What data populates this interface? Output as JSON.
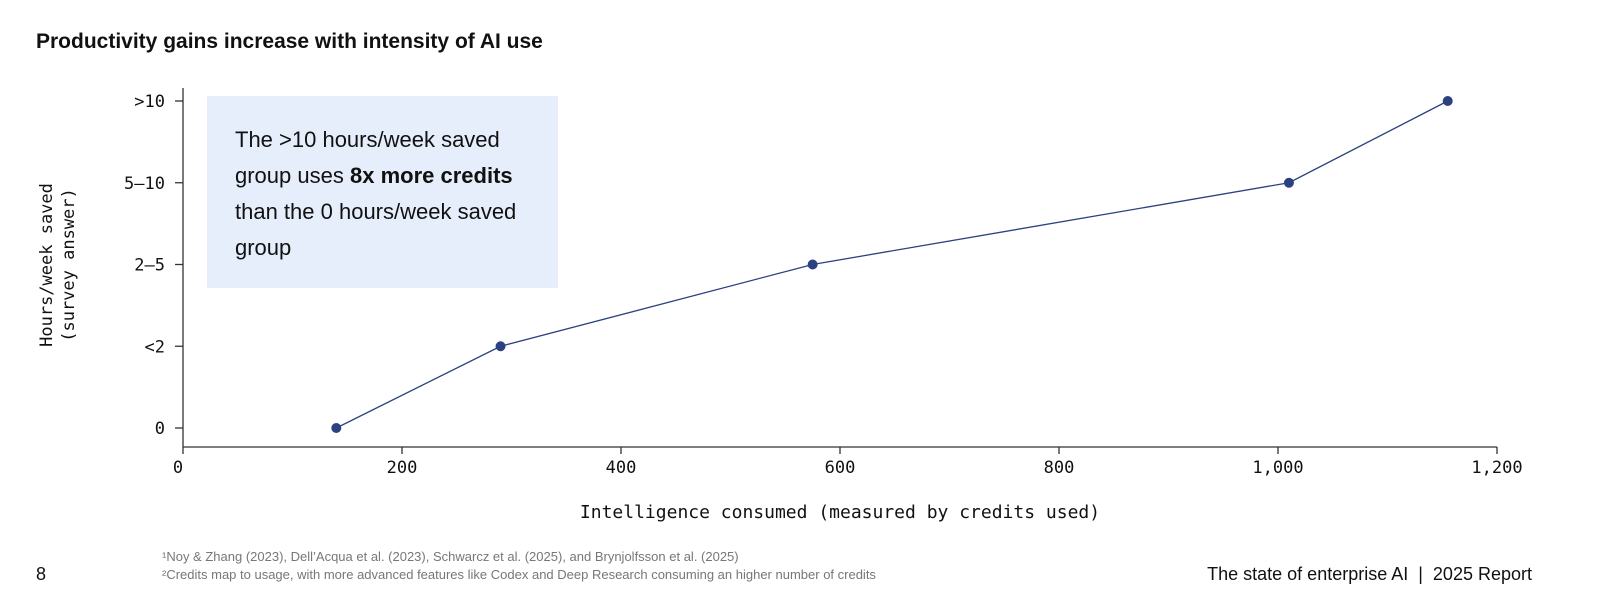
{
  "title": "Productivity gains increase with intensity of AI use",
  "callout": {
    "part1": "The >10 hours/week saved group uses ",
    "bold1": "8x",
    "bold2": "more credits",
    "part2": " than the 0 hours/week saved group"
  },
  "chart_data": {
    "type": "line",
    "title": "Productivity gains increase with intensity of AI use",
    "xlabel": "Intelligence consumed (measured by credits used)",
    "ylabel": "Hours/week saved (survey answer)",
    "xlim": [
      0,
      1200
    ],
    "x_ticks": [
      "0",
      "200",
      "400",
      "600",
      "800",
      "1,000",
      "1,200"
    ],
    "x_tick_values": [
      0,
      200,
      400,
      600,
      800,
      1000,
      1200
    ],
    "y_categories": [
      "0",
      "<2",
      "2–5",
      "5–10",
      ">10"
    ],
    "grid": false,
    "color": "#2c4280",
    "points": [
      {
        "x": 140,
        "y": "0"
      },
      {
        "x": 290,
        "y": "<2"
      },
      {
        "x": 575,
        "y": "2–5"
      },
      {
        "x": 1010,
        "y": "5–10"
      },
      {
        "x": 1155,
        "y": ">10"
      }
    ]
  },
  "footer": {
    "page": "8",
    "note1": "¹Noy & Zhang (2023), Dell’Acqua et al. (2023), Schwarcz et al. (2025), and Brynjolfsson et al. (2025)",
    "note2": "²Credits map to usage, with more advanced features like Codex and Deep Research consuming an higher number of credits",
    "report": "The state of enterprise AI  |  2025 Report"
  }
}
